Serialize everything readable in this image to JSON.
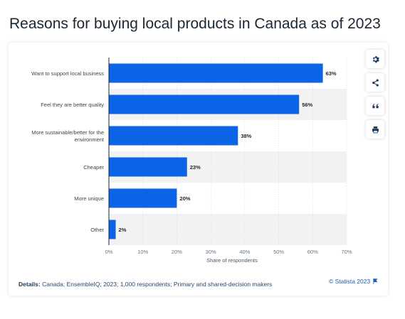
{
  "page": {
    "title": "Reasons for buying local products in Canada as of 2023"
  },
  "toolbar": {
    "items": [
      "gear-icon",
      "share-icon",
      "quote-icon",
      "print-icon"
    ]
  },
  "footer": {
    "details_label": "Details:",
    "details_text": "Canada; EnsembleIQ; 2023; 1,000 respondents; Primary and shared-decision makers",
    "credit": "© Statista 2023"
  },
  "colors": {
    "bar": "#0b63e5",
    "band": "#f2f2f2",
    "accent": "#1a5fb4"
  },
  "chart_data": {
    "type": "bar",
    "orientation": "horizontal",
    "categories": [
      [
        "Want to support local business"
      ],
      [
        "Feel they are better quality"
      ],
      [
        "More sustainable/better for the",
        "environment"
      ],
      [
        "Cheaper"
      ],
      [
        "More unique"
      ],
      [
        "Other"
      ]
    ],
    "values": [
      63,
      56,
      38,
      23,
      20,
      2
    ],
    "value_labels": [
      "63%",
      "56%",
      "38%",
      "23%",
      "20%",
      "2%"
    ],
    "xlabel": "Share of respondents",
    "ylabel": "",
    "xlim": [
      0,
      70
    ],
    "xticks": [
      0,
      10,
      20,
      30,
      40,
      50,
      60,
      70
    ],
    "xtick_labels": [
      "0%",
      "10%",
      "20%",
      "30%",
      "40%",
      "50%",
      "60%",
      "70%"
    ],
    "grid": true
  }
}
